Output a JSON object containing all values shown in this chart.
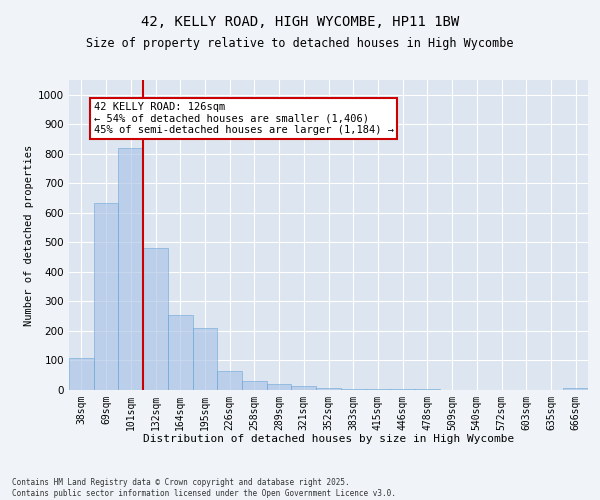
{
  "title1": "42, KELLY ROAD, HIGH WYCOMBE, HP11 1BW",
  "title2": "Size of property relative to detached houses in High Wycombe",
  "xlabel": "Distribution of detached houses by size in High Wycombe",
  "ylabel": "Number of detached properties",
  "categories": [
    "38sqm",
    "69sqm",
    "101sqm",
    "132sqm",
    "164sqm",
    "195sqm",
    "226sqm",
    "258sqm",
    "289sqm",
    "321sqm",
    "352sqm",
    "383sqm",
    "415sqm",
    "446sqm",
    "478sqm",
    "509sqm",
    "540sqm",
    "572sqm",
    "603sqm",
    "635sqm",
    "666sqm"
  ],
  "values": [
    110,
    635,
    820,
    480,
    255,
    210,
    65,
    30,
    20,
    15,
    8,
    5,
    3,
    2,
    2,
    1,
    1,
    1,
    0,
    0,
    8
  ],
  "bar_color": "#aec6e8",
  "bar_edgecolor": "#5a9fd4",
  "bar_alpha": 0.7,
  "vline_color": "#cc0000",
  "annotation_text": "42 KELLY ROAD: 126sqm\n← 54% of detached houses are smaller (1,406)\n45% of semi-detached houses are larger (1,184) →",
  "annotation_fontsize": 7.5,
  "annotation_box_color": "#ffffff",
  "annotation_box_edgecolor": "#cc0000",
  "ylim": [
    0,
    1050
  ],
  "yticks": [
    0,
    100,
    200,
    300,
    400,
    500,
    600,
    700,
    800,
    900,
    1000
  ],
  "fig_bg_color": "#f0f4f8",
  "bg_color": "#dde6f0",
  "footer": "Contains HM Land Registry data © Crown copyright and database right 2025.\nContains public sector information licensed under the Open Government Licence v3.0.",
  "title1_fontsize": 10,
  "title2_fontsize": 8.5
}
